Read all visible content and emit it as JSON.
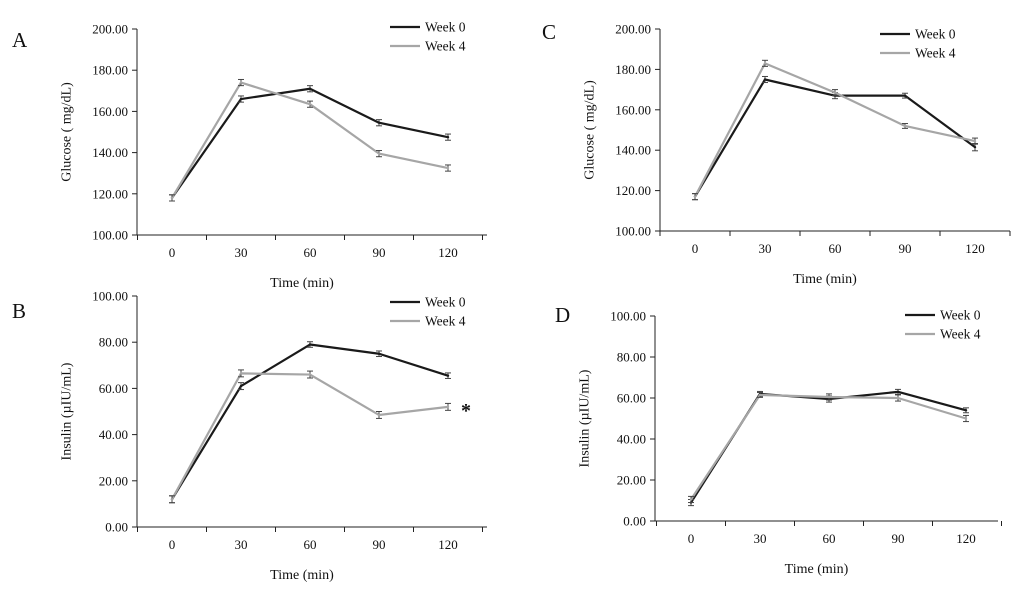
{
  "chart_data": [
    {
      "panel": "A",
      "type": "line",
      "ylabel": "Glucose ( mg/dL)",
      "xlabel": "Time (min)",
      "ylim": [
        100,
        200
      ],
      "yticks": [
        "100.00",
        "120.00",
        "140.00",
        "160.00",
        "180.00",
        "200.00"
      ],
      "categories": [
        "0",
        "30",
        "60",
        "90",
        "120"
      ],
      "grid": false,
      "legend_position": "top-right",
      "annotation": "",
      "series": [
        {
          "name": "Week 0",
          "color": "#1a1a1a",
          "values": [
            118,
            166,
            171,
            154.5,
            147.5
          ],
          "errors": [
            1.5,
            1.5,
            1.5,
            1.5,
            1.5
          ]
        },
        {
          "name": "Week 4",
          "color": "#a6a6a6",
          "values": [
            118,
            174,
            163.5,
            139.5,
            132.5
          ],
          "errors": [
            1.5,
            1.5,
            1.5,
            1.5,
            1.5
          ]
        }
      ]
    },
    {
      "panel": "B",
      "type": "line",
      "ylabel": "Insulin (µIU/mL)",
      "xlabel": "Time (min)",
      "ylim": [
        0,
        100
      ],
      "yticks": [
        "0.00",
        "20.00",
        "40.00",
        "60.00",
        "80.00",
        "100.00"
      ],
      "categories": [
        "0",
        "30",
        "60",
        "90",
        "120"
      ],
      "grid": false,
      "legend_position": "top-right",
      "annotation": "*",
      "series": [
        {
          "name": "Week 0",
          "color": "#1a1a1a",
          "values": [
            12,
            61,
            79,
            75,
            65.5
          ],
          "errors": [
            1.5,
            1.5,
            1.2,
            1.2,
            1.2
          ]
        },
        {
          "name": "Week 4",
          "color": "#a6a6a6",
          "values": [
            12,
            66.5,
            66,
            48.5,
            52
          ],
          "errors": [
            1.5,
            1.5,
            1.5,
            1.5,
            1.5
          ]
        }
      ]
    },
    {
      "panel": "C",
      "type": "line",
      "ylabel": "Glucose ( mg/dL)",
      "xlabel": "Time (min)",
      "ylim": [
        100,
        200
      ],
      "yticks": [
        "100.00",
        "120.00",
        "140.00",
        "160.00",
        "180.00",
        "200.00"
      ],
      "categories": [
        "0",
        "30",
        "60",
        "90",
        "120"
      ],
      "grid": false,
      "legend_position": "top-right",
      "annotation": "",
      "series": [
        {
          "name": "Week 0",
          "color": "#1a1a1a",
          "values": [
            117,
            175,
            167,
            167,
            141.5
          ],
          "errors": [
            1.5,
            1.5,
            1.5,
            1.2,
            1.8
          ]
        },
        {
          "name": "Week 4",
          "color": "#a6a6a6",
          "values": [
            117,
            183,
            168.5,
            152,
            144.5
          ],
          "errors": [
            1.5,
            1.5,
            1.5,
            1.2,
            1.5
          ]
        }
      ]
    },
    {
      "panel": "D",
      "type": "line",
      "ylabel": "Insulin (µIU/mL)",
      "xlabel": "Time (min)",
      "ylim": [
        0,
        100
      ],
      "yticks": [
        "0.00",
        "20.00",
        "40.00",
        "60.00",
        "80.00",
        "100.00"
      ],
      "categories": [
        "0",
        "30",
        "60",
        "90",
        "120"
      ],
      "grid": false,
      "legend_position": "top-right",
      "annotation": "",
      "series": [
        {
          "name": "Week 0",
          "color": "#1a1a1a",
          "values": [
            9,
            62,
            59.5,
            63,
            54
          ],
          "errors": [
            1.5,
            1.2,
            1.5,
            1.2,
            1.2
          ]
        },
        {
          "name": "Week 4",
          "color": "#a6a6a6",
          "values": [
            10.5,
            61.5,
            60.5,
            60,
            50
          ],
          "errors": [
            1.5,
            1.2,
            1.5,
            1.5,
            1.5
          ]
        }
      ]
    }
  ]
}
